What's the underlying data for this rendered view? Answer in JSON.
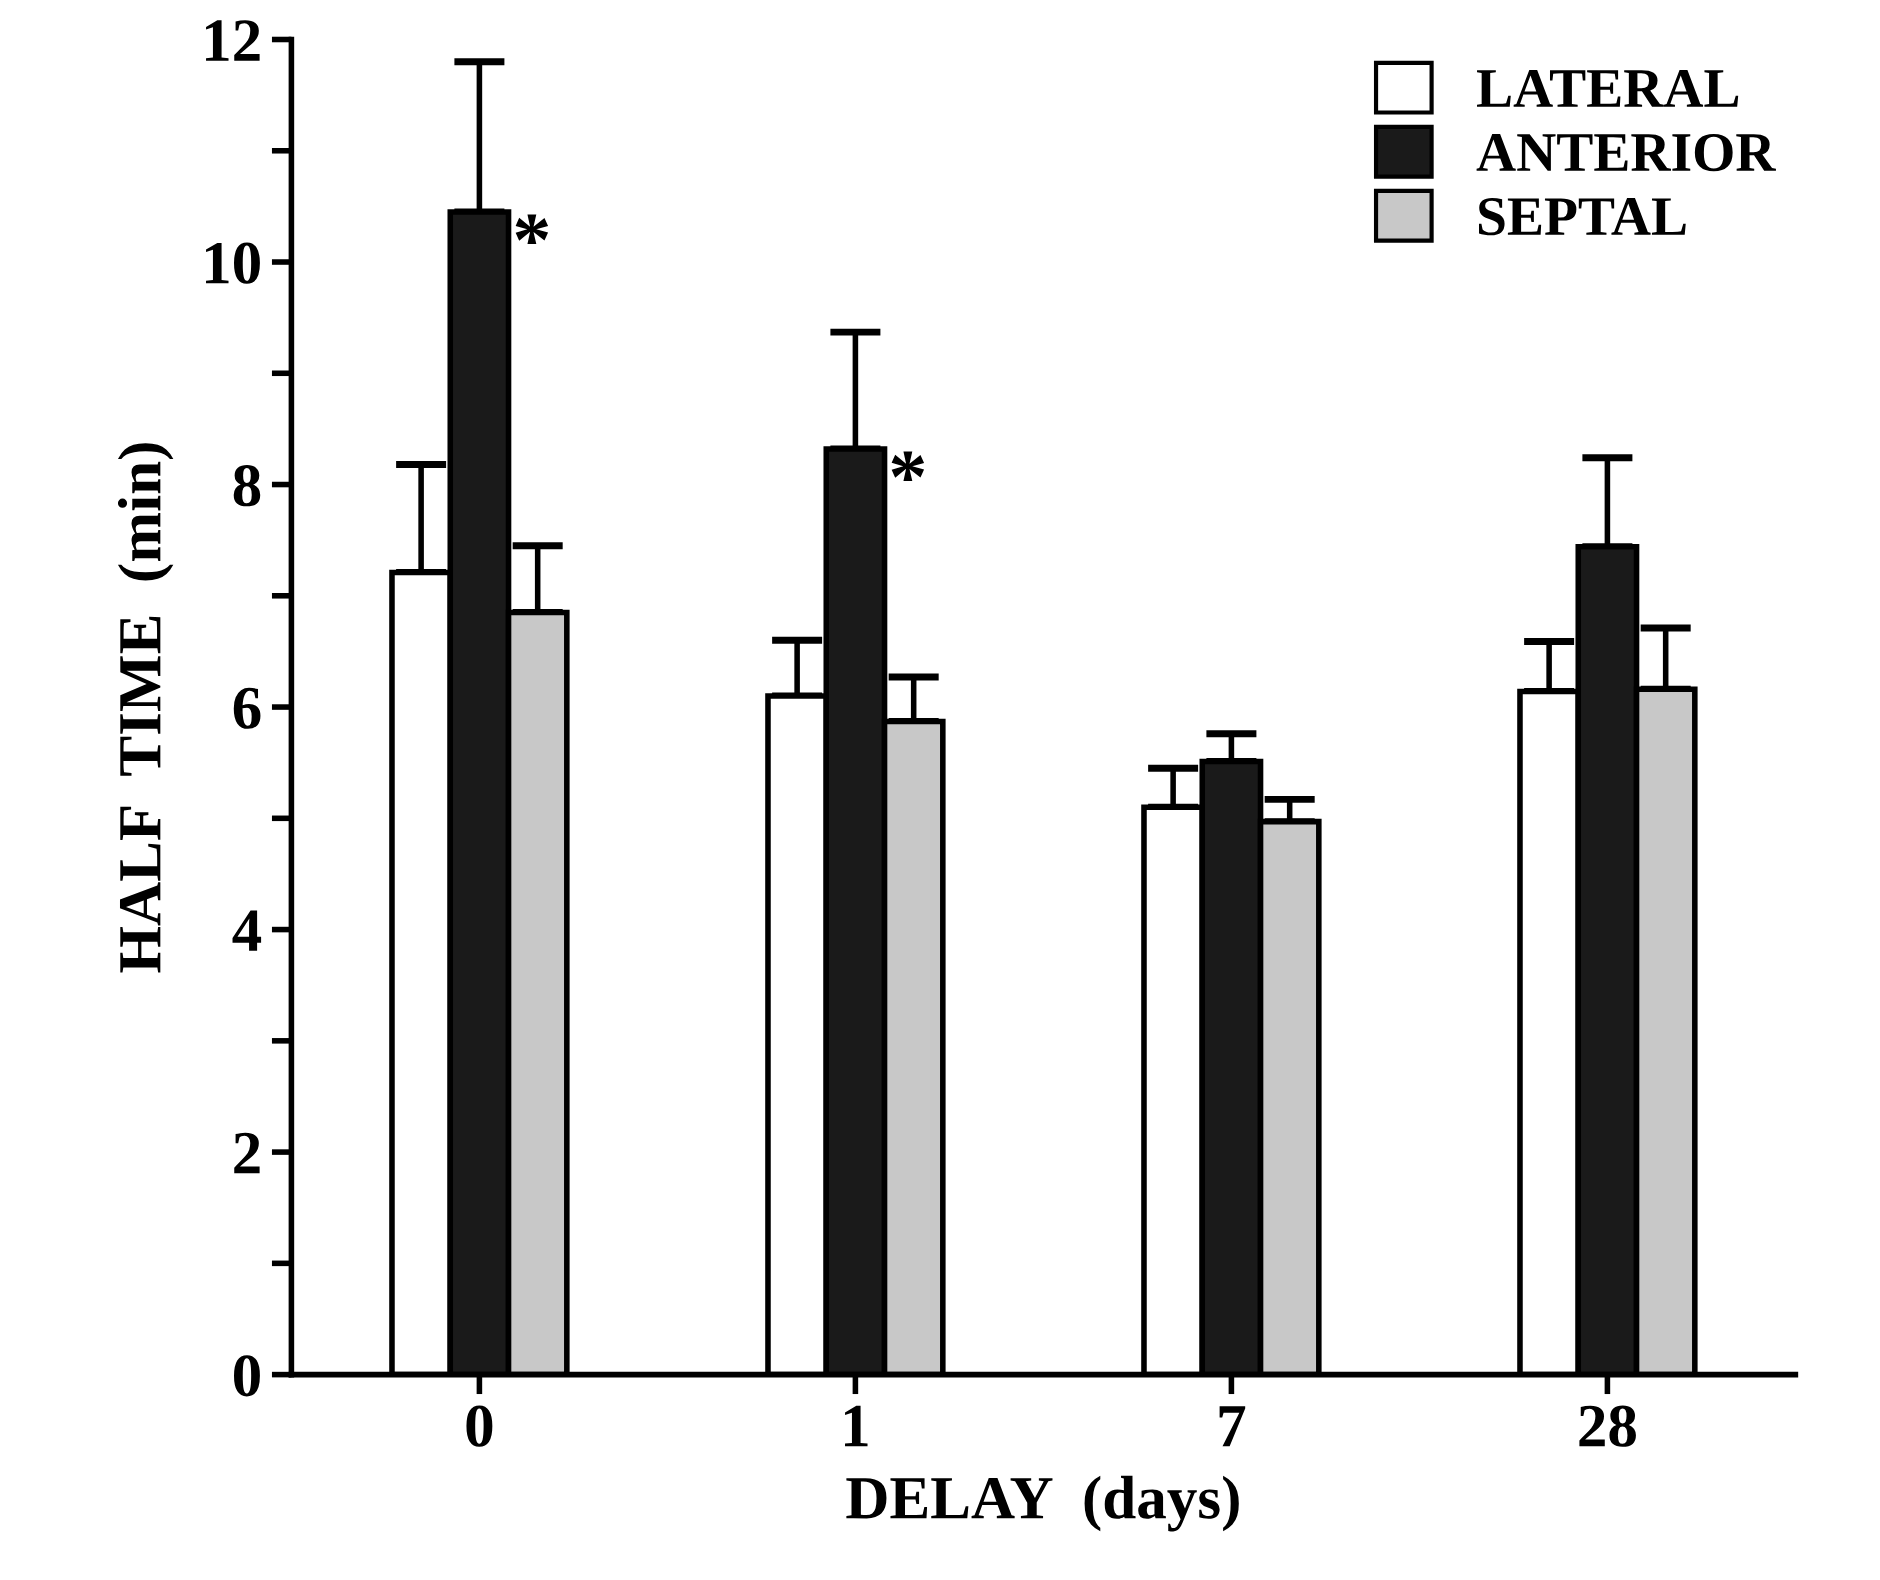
{
  "chart_data": {
    "type": "bar",
    "xlabel": "DELAY  (days)",
    "ylabel": "HALF  TIME  (min)",
    "categories": [
      "0",
      "1",
      "7",
      "28"
    ],
    "series": [
      {
        "name": "LATERAL",
        "color": "#ffffff",
        "values": [
          7.21,
          6.1,
          5.1,
          6.14
        ],
        "errors": [
          0.97,
          0.5,
          0.35,
          0.45
        ]
      },
      {
        "name": "ANTERIOR",
        "color": "#1a1a1a",
        "values": [
          10.45,
          8.32,
          5.51,
          7.44
        ],
        "errors": [
          1.35,
          1.05,
          0.25,
          0.8
        ]
      },
      {
        "name": "SEPTAL",
        "color": "#c8c8c8",
        "values": [
          6.85,
          5.87,
          4.97,
          6.16
        ],
        "errors": [
          0.6,
          0.4,
          0.2,
          0.55
        ]
      }
    ],
    "ylim": [
      0,
      12
    ],
    "yticks": [
      0,
      {
        "value": 1,
        "label": null
      },
      2,
      {
        "value": 3,
        "label": null
      },
      4,
      {
        "value": 5,
        "label": null
      },
      6,
      {
        "value": 7,
        "label": null
      },
      8,
      {
        "value": 9,
        "label": null
      },
      10,
      {
        "value": 11,
        "label": null
      },
      12
    ],
    "annotations": [
      {
        "text": "*",
        "x": "0",
        "y": 10.45
      },
      {
        "text": "*",
        "x": "1",
        "y": 8.32
      }
    ],
    "legend": "top right",
    "grid": false
  }
}
